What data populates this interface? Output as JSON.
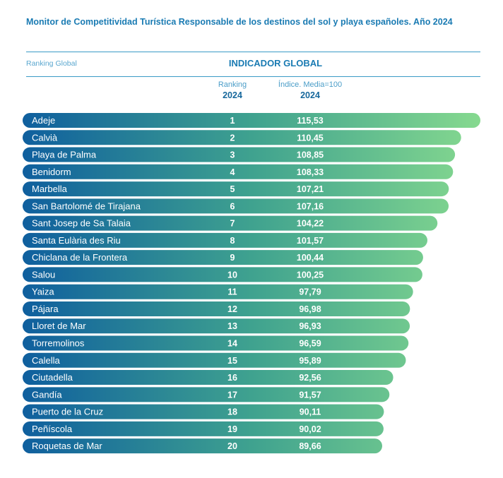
{
  "header": {
    "title": "Monitor de Competitividad Turística Responsable de los destinos del sol y playa españoles. Año 2024",
    "ranking_global_label": "Ranking Global",
    "indicator_title": "INDICADOR GLOBAL",
    "col_ranking_label": "Ranking",
    "col_ranking_year": "2024",
    "col_index_label": "Índice. Media=100",
    "col_index_year": "2024"
  },
  "colors": {
    "bar_start": "#0f5f9e",
    "bar_mid": "#3fa28f",
    "bar_end": "#86d98f",
    "accent": "#1a7bb3"
  },
  "chart_data": {
    "type": "bar",
    "orientation": "horizontal",
    "title": "Monitor de Competitividad Turística Responsable de los destinos del sol y playa españoles. Año 2024",
    "xlabel": "Índice. Media=100 (2024)",
    "ylabel": "Ranking Global",
    "categories": [
      "Adeje",
      "Calvià",
      "Playa de Palma",
      "Benidorm",
      "Marbella",
      "San Bartolomé de Tirajana",
      "Sant Josep de Sa Talaia",
      "Santa Eulària des Riu",
      "Chiclana de la Frontera",
      "Salou",
      "Yaiza",
      "Pájara",
      "Lloret de Mar",
      "Torremolinos",
      "Calella",
      "Ciutadella",
      "Gandía",
      "Puerto de la Cruz",
      "Peñíscola",
      "Roquetas de Mar"
    ],
    "ranking": [
      1,
      2,
      3,
      4,
      5,
      6,
      7,
      8,
      9,
      10,
      11,
      12,
      13,
      14,
      15,
      16,
      17,
      18,
      19,
      20
    ],
    "values": [
      115.53,
      110.45,
      108.85,
      108.33,
      107.21,
      107.16,
      104.22,
      101.57,
      100.44,
      100.25,
      97.79,
      96.98,
      96.93,
      96.59,
      95.89,
      92.56,
      91.57,
      90.11,
      90.02,
      89.66
    ],
    "value_labels": [
      "115,53",
      "110,45",
      "108,85",
      "108,33",
      "107,21",
      "107,16",
      "104,22",
      "101,57",
      "100,44",
      "100,25",
      "97,79",
      "96,98",
      "96,93",
      "96,59",
      "95,89",
      "92,56",
      "91,57",
      "90,11",
      "90,02",
      "89,66"
    ],
    "grid": false,
    "legend": "none"
  }
}
